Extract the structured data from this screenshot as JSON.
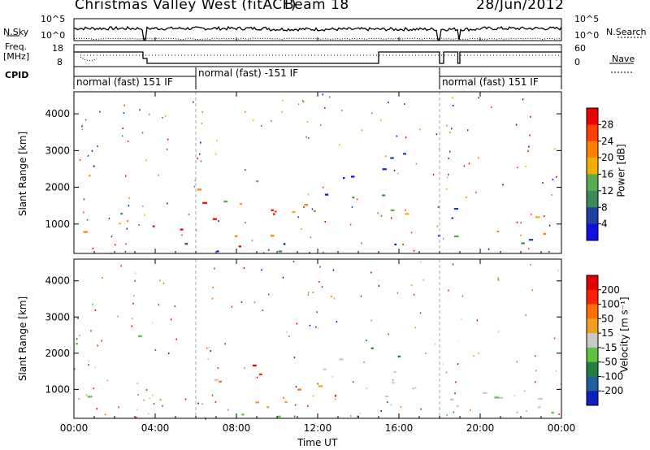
{
  "header": {
    "station": "Christmas Valley West (fitACF)",
    "beam": "Beam 18",
    "date": "28/Jun/2012"
  },
  "top_panels": {
    "nsky_label": "N.Sky",
    "nsky_ticks": [
      "10^5",
      "10^0"
    ],
    "nsearch_label": "N.Search",
    "nsearch_ticks": [
      "10^5",
      "10^0"
    ],
    "freq_label_1": "Freq.",
    "freq_label_2": "[MHz]",
    "freq_ticks": [
      "18",
      "8"
    ],
    "nave_label": "Nave",
    "nave_ticks": [
      "60",
      "0"
    ],
    "cpid_label": "CPID",
    "cpid_segments": [
      "normal (fast) 151 IF",
      "normal (fast) -151 IF",
      "normal (fast) 151 IF"
    ]
  },
  "chart_data": [
    {
      "type": "heatmap",
      "name": "power",
      "ylabel": "Slant Range [km]",
      "yticks": [
        "4000",
        "3000",
        "2000",
        "1000"
      ],
      "xticks": [
        "00:00",
        "04:00",
        "08:00",
        "12:00",
        "16:00",
        "20:00",
        "00:00"
      ],
      "colorbar_label": "Power [dB]",
      "colorbar_ticks": [
        "28",
        "24",
        "20",
        "16",
        "12",
        "8",
        "4"
      ],
      "colors": [
        "#1010e0",
        "#2040a0",
        "#3a8a5a",
        "#5aaa50",
        "#f0b000",
        "#ff8000",
        "#ff4000",
        "#ee0000"
      ]
    },
    {
      "type": "heatmap",
      "name": "velocity",
      "ylabel": "Slant Range [km]",
      "yticks": [
        "4000",
        "3000",
        "2000",
        "1000"
      ],
      "xticks": [
        "00:00",
        "04:00",
        "08:00",
        "12:00",
        "16:00",
        "20:00",
        "00:00"
      ],
      "xlabel": "Time UT",
      "colorbar_label": "Velocity [m s⁻¹]",
      "colorbar_ticks": [
        "200",
        "100",
        "50",
        "15",
        "-15",
        "-50",
        "-100",
        "-200"
      ],
      "colors": [
        "#1020c0",
        "#2060a0",
        "#208040",
        "#60c040",
        "#c8c8c8",
        "#f0a020",
        "#ff7000",
        "#ff2000",
        "#e00000"
      ]
    }
  ]
}
